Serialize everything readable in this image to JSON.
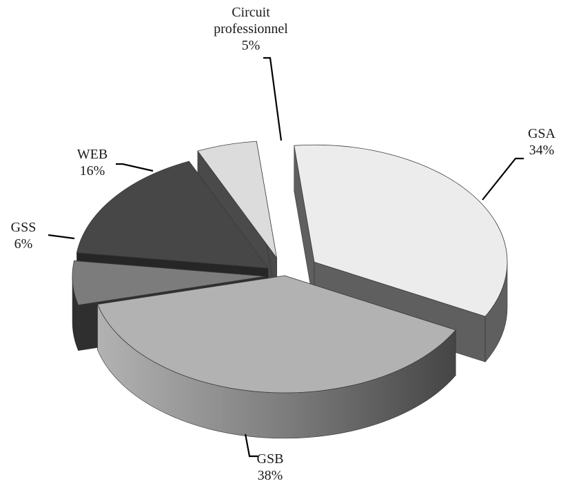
{
  "chart_data": {
    "type": "pie",
    "style": "3d-exploded",
    "title": "",
    "unit": "%",
    "legend": "none",
    "slices": [
      {
        "name": "GSA",
        "value": 34,
        "label": "34%",
        "color": "#ececec",
        "side_color": "#5f5f5f"
      },
      {
        "name": "GSB",
        "value": 38,
        "label": "38%",
        "color": "#b2b2b2",
        "side_color": "#7a7a7a"
      },
      {
        "name": "GSS",
        "value": 6,
        "label": "6%",
        "color": "#7c7c7c",
        "side_color": "#2f2f2f"
      },
      {
        "name": "WEB",
        "value": 16,
        "label": "16%",
        "color": "#474747",
        "side_color": "#262626"
      },
      {
        "name": "Circuit professionnel",
        "value": 5,
        "label": "5%",
        "color": "#dcdcdc",
        "side_color": "#4a4a4a"
      }
    ]
  }
}
